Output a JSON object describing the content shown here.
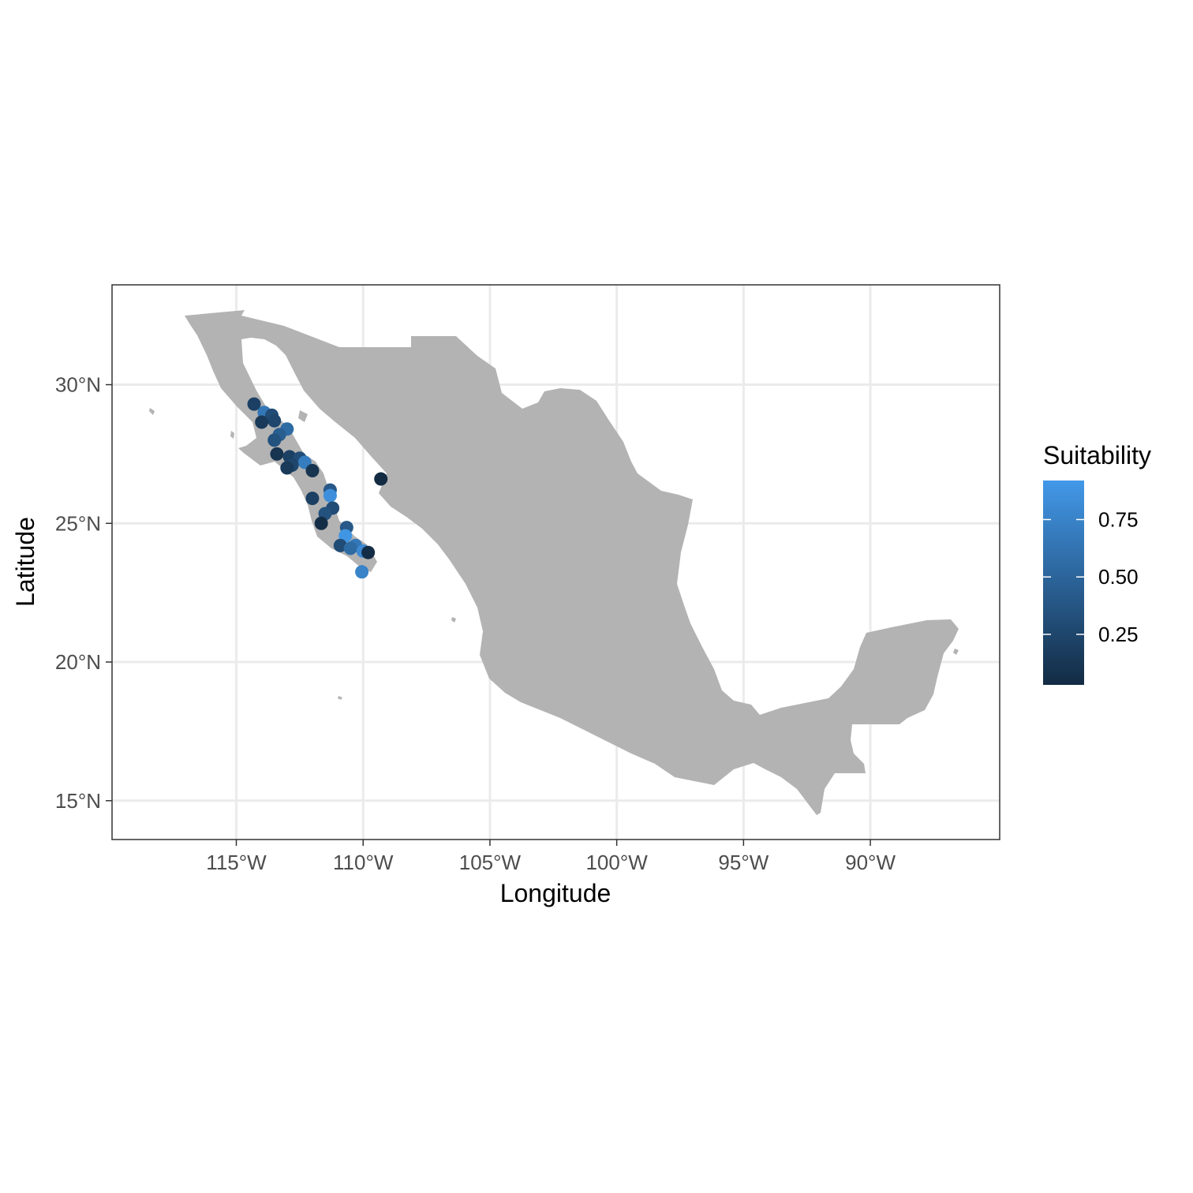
{
  "chart_data": {
    "type": "scatter",
    "subtype": "map",
    "region": "Mexico",
    "xlabel": "Longitude",
    "ylabel": "Latitude",
    "xlim": [
      -119.9,
      -84.9
    ],
    "ylim": [
      13.6,
      33.6
    ],
    "x_ticks": [
      {
        "value": -115,
        "label": "115°W"
      },
      {
        "value": -110,
        "label": "110°W"
      },
      {
        "value": -105,
        "label": "105°W"
      },
      {
        "value": -100,
        "label": "100°W"
      },
      {
        "value": -95,
        "label": "95°W"
      },
      {
        "value": -90,
        "label": "90°W"
      }
    ],
    "y_ticks": [
      {
        "value": 30,
        "label": "30°N"
      },
      {
        "value": 25,
        "label": "25°N"
      },
      {
        "value": 20,
        "label": "20°N"
      },
      {
        "value": 15,
        "label": "15°N"
      }
    ],
    "grid": true,
    "land_color": "#b3b3b3",
    "gridline_color": "#ebebeb",
    "legend": {
      "title": "Suitability",
      "position": "right",
      "color_low": "#132b43",
      "color_high": "#4298e8",
      "range": [
        0.03,
        0.92
      ],
      "ticks": [
        {
          "value": 0.25,
          "label": "0.25"
        },
        {
          "value": 0.5,
          "label": "0.50"
        },
        {
          "value": 0.75,
          "label": "0.75"
        }
      ]
    },
    "points": [
      {
        "lon": -114.3,
        "lat": 29.3,
        "suitability": 0.2
      },
      {
        "lon": -113.9,
        "lat": 29.0,
        "suitability": 0.65
      },
      {
        "lon": -113.6,
        "lat": 28.9,
        "suitability": 0.3
      },
      {
        "lon": -113.5,
        "lat": 28.7,
        "suitability": 0.25
      },
      {
        "lon": -114.0,
        "lat": 28.65,
        "suitability": 0.15
      },
      {
        "lon": -113.0,
        "lat": 28.4,
        "suitability": 0.55
      },
      {
        "lon": -113.3,
        "lat": 28.2,
        "suitability": 0.45
      },
      {
        "lon": -113.5,
        "lat": 28.0,
        "suitability": 0.35
      },
      {
        "lon": -113.4,
        "lat": 27.5,
        "suitability": 0.1
      },
      {
        "lon": -112.9,
        "lat": 27.4,
        "suitability": 0.2
      },
      {
        "lon": -112.5,
        "lat": 27.35,
        "suitability": 0.3
      },
      {
        "lon": -112.3,
        "lat": 27.2,
        "suitability": 0.7
      },
      {
        "lon": -112.8,
        "lat": 27.1,
        "suitability": 0.25
      },
      {
        "lon": -113.0,
        "lat": 27.0,
        "suitability": 0.15
      },
      {
        "lon": -112.0,
        "lat": 26.9,
        "suitability": 0.1
      },
      {
        "lon": -111.3,
        "lat": 26.2,
        "suitability": 0.4
      },
      {
        "lon": -111.3,
        "lat": 26.0,
        "suitability": 0.85
      },
      {
        "lon": -112.0,
        "lat": 25.9,
        "suitability": 0.2
      },
      {
        "lon": -111.2,
        "lat": 25.55,
        "suitability": 0.3
      },
      {
        "lon": -111.5,
        "lat": 25.35,
        "suitability": 0.35
      },
      {
        "lon": -111.65,
        "lat": 25.0,
        "suitability": 0.05
      },
      {
        "lon": -110.65,
        "lat": 24.85,
        "suitability": 0.4
      },
      {
        "lon": -110.7,
        "lat": 24.55,
        "suitability": 0.9
      },
      {
        "lon": -110.9,
        "lat": 24.2,
        "suitability": 0.3
      },
      {
        "lon": -110.3,
        "lat": 24.2,
        "suitability": 0.65
      },
      {
        "lon": -110.5,
        "lat": 24.1,
        "suitability": 0.55
      },
      {
        "lon": -110.0,
        "lat": 24.0,
        "suitability": 0.8
      },
      {
        "lon": -109.8,
        "lat": 23.95,
        "suitability": 0.05
      },
      {
        "lon": -110.05,
        "lat": 23.25,
        "suitability": 0.75
      },
      {
        "lon": -109.3,
        "lat": 26.6,
        "suitability": 0.03
      }
    ]
  }
}
